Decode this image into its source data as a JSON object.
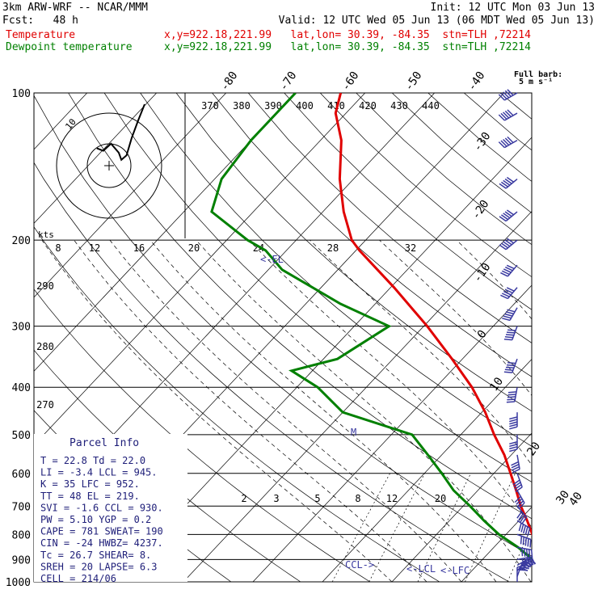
{
  "header": {
    "model": "3km ARW-WRF -- NCAR/MMM",
    "init": "Init: 12 UTC Mon 03 Jun 13",
    "fcst": "Fcst:   48 h",
    "valid": "Valid: 12 UTC Wed 05 Jun 13 (06 MDT Wed 05 Jun 13)",
    "temp_label": "Temperature",
    "temp_loc": "x,y=922.18,221.99   lat,lon= 30.39, -84.35  stn=TLH ,72214",
    "dew_label": "Dewpoint temperature",
    "dew_loc": "x,y=922.18,221.99   lat,lon= 30.39, -84.35  stn=TLH ,72214",
    "full_barb": "Full barb:",
    "full_barb_units": "5 m s⁻¹"
  },
  "colors": {
    "temperature": "#e00000",
    "dewpoint": "#008000",
    "wind": "#3a3aa0"
  },
  "parcel_info": {
    "title": "Parcel Info",
    "rows": [
      "T  =   22.8  Td =  22.0",
      "LI =   -3.4  LCL =  945.",
      "K  =     35  LFC =  952.",
      "TT =     48  EL  =  219.",
      "SVI =  -1.6  CCL =  930.",
      "PW =   5.10  YGP =   0.2",
      "CAPE =  781  SWEAT=  190",
      "CIN =   -24  HWBZ= 4237.",
      "Tc =   26.7  SHEAR=   8.",
      "SREH =   20  LAPSE=   6.3",
      "CELL = 214/06"
    ]
  },
  "annotations": {
    "el": "<-EL",
    "ccl": "CCL->",
    "lcl": "<-LCL",
    "lfc": "<-LFC",
    "m": "M"
  },
  "hodograph": {
    "ring_label": "10",
    "kts": "kts"
  },
  "chart_data": {
    "type": "skew-t",
    "pressure_levels": [
      100,
      200,
      300,
      400,
      500,
      600,
      700,
      800,
      900,
      1000
    ],
    "top_temperature_labels": [
      "-80",
      "-70",
      "-60",
      "-50",
      "-40"
    ],
    "right_temperature_labels": [
      "-30",
      "-20",
      "-10",
      "0",
      "10",
      "20",
      "30",
      "40"
    ],
    "theta_labels": [
      "370",
      "380",
      "390",
      "400",
      "410",
      "420",
      "430",
      "440"
    ],
    "theta_e_labels": [
      "290",
      "280",
      "270"
    ],
    "mixing_ratio_labels": [
      "2",
      "3",
      "5",
      "8",
      "12",
      "20"
    ],
    "mixing_ratio_bottom": [
      "8",
      "12",
      "16",
      "20",
      "24",
      "28",
      "32"
    ],
    "series": [
      {
        "name": "Temperature",
        "points": [
          [
            1000,
            22.8
          ],
          [
            980,
            22
          ],
          [
            950,
            20.5
          ],
          [
            900,
            18.3
          ],
          [
            850,
            16.5
          ],
          [
            800,
            13.8
          ],
          [
            750,
            11.2
          ],
          [
            700,
            8.3
          ],
          [
            650,
            5.5
          ],
          [
            600,
            2.4
          ],
          [
            550,
            -1.0
          ],
          [
            500,
            -5.2
          ],
          [
            450,
            -9.5
          ],
          [
            400,
            -14.8
          ],
          [
            350,
            -21.5
          ],
          [
            300,
            -29.5
          ],
          [
            250,
            -39.5
          ],
          [
            210,
            -49.5
          ],
          [
            200,
            -52
          ],
          [
            175,
            -57
          ],
          [
            150,
            -62
          ],
          [
            125,
            -67
          ],
          [
            110,
            -71.5
          ],
          [
            100,
            -73.5
          ]
        ]
      },
      {
        "name": "Dewpoint temperature",
        "points": [
          [
            1000,
            22.0
          ],
          [
            980,
            21.0
          ],
          [
            950,
            19.8
          ],
          [
            900,
            17.2
          ],
          [
            850,
            13.5
          ],
          [
            800,
            9.0
          ],
          [
            750,
            5.0
          ],
          [
            700,
            1.0
          ],
          [
            650,
            -3.5
          ],
          [
            600,
            -7.5
          ],
          [
            550,
            -12
          ],
          [
            500,
            -17
          ],
          [
            450,
            -30
          ],
          [
            400,
            -37
          ],
          [
            370,
            -43
          ],
          [
            350,
            -38
          ],
          [
            300,
            -35
          ],
          [
            270,
            -45
          ],
          [
            230,
            -58
          ],
          [
            210,
            -63
          ],
          [
            200,
            -67
          ],
          [
            175,
            -76
          ],
          [
            150,
            -79
          ],
          [
            125,
            -80
          ],
          [
            110,
            -80
          ],
          [
            100,
            -80
          ]
        ]
      }
    ],
    "wind_barbs": [
      [
        1000,
        0,
        2
      ],
      [
        975,
        20,
        4
      ],
      [
        950,
        40,
        5
      ],
      [
        925,
        60,
        6
      ],
      [
        900,
        80,
        6
      ],
      [
        850,
        100,
        5
      ],
      [
        800,
        110,
        5
      ],
      [
        750,
        120,
        5
      ],
      [
        700,
        140,
        4
      ],
      [
        650,
        150,
        4
      ],
      [
        600,
        160,
        4
      ],
      [
        550,
        170,
        4
      ],
      [
        500,
        180,
        4
      ],
      [
        450,
        180,
        5
      ],
      [
        400,
        190,
        5
      ],
      [
        350,
        200,
        5
      ],
      [
        300,
        200,
        6
      ],
      [
        275,
        210,
        6
      ],
      [
        250,
        220,
        6
      ],
      [
        225,
        220,
        6
      ],
      [
        200,
        230,
        7
      ],
      [
        175,
        230,
        7
      ],
      [
        150,
        230,
        8
      ],
      [
        125,
        240,
        8
      ],
      [
        110,
        240,
        9
      ],
      [
        100,
        240,
        10
      ]
    ],
    "hodograph": [
      [
        0.6,
        1.2
      ],
      [
        1.6,
        0.8
      ],
      [
        2.8,
        1.9
      ],
      [
        4.0,
        0.5
      ],
      [
        4.4,
        -0.6
      ],
      [
        5.2,
        0.1
      ],
      [
        6.0,
        2.8
      ],
      [
        7.0,
        5.5
      ],
      [
        8.0,
        8.0
      ]
    ]
  }
}
